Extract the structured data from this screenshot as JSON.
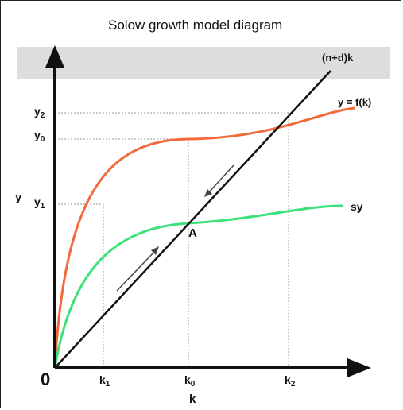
{
  "title": "Solow growth model diagram",
  "axes": {
    "y_label": "y",
    "x_label": "k",
    "origin_label": "0"
  },
  "curves": {
    "production": {
      "label": "y = f(k)",
      "color": "#f26a3a"
    },
    "savings": {
      "label": "sy",
      "color": "#3ee07a"
    },
    "depreciation": {
      "label": "(n+d)k",
      "color": "#111111"
    }
  },
  "y_ticks": [
    {
      "base": "y",
      "sub": "2"
    },
    {
      "base": "y",
      "sub": "0"
    },
    {
      "base": "y",
      "sub": "1"
    }
  ],
  "k_ticks": [
    {
      "base": "k",
      "sub": "1"
    },
    {
      "base": "k",
      "sub": "0"
    },
    {
      "base": "k",
      "sub": "2"
    }
  ],
  "steady_state_label": "A"
}
